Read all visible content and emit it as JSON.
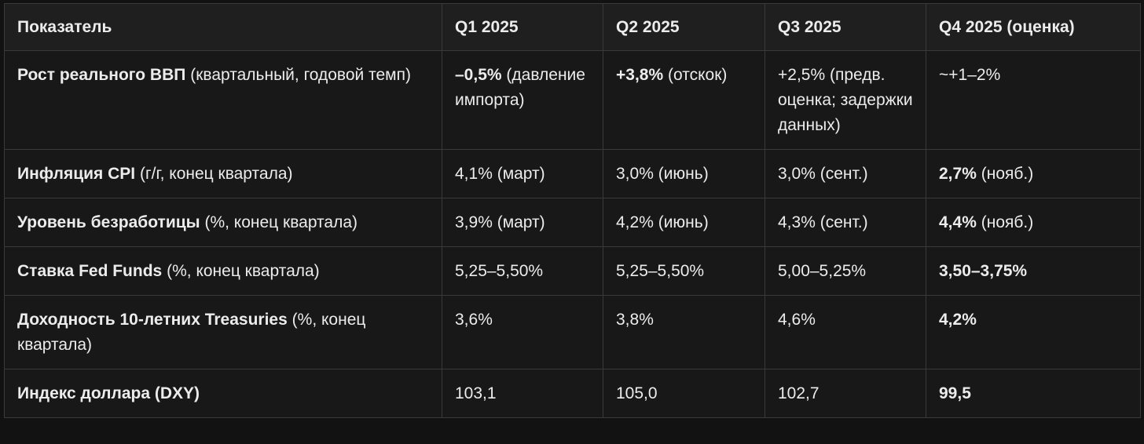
{
  "table": {
    "headers": [
      "Показатель",
      "Q1 2025",
      "Q2 2025",
      "Q3 2025",
      "Q4 2025 (оценка)"
    ],
    "rows": [
      [
        {
          "bold": "Рост реального ВВП",
          "text": "(квартальный, годовой темп)"
        },
        {
          "bold": "–0,5%",
          "text": "(давление импорта)"
        },
        {
          "bold": "+3,8%",
          "text": "(отскок)"
        },
        {
          "text": "+2,5% (предв. оценка; задержки данных)"
        },
        {
          "text": "~+1–2%"
        }
      ],
      [
        {
          "bold": "Инфляция CPI",
          "text": "(г/г, конец квартала)"
        },
        {
          "text": "4,1% (март)"
        },
        {
          "text": "3,0% (июнь)"
        },
        {
          "text": "3,0% (сент.)"
        },
        {
          "bold": "2,7%",
          "text": "(нояб.)"
        }
      ],
      [
        {
          "bold": "Уровень безработицы",
          "text": "(%, конец квартала)"
        },
        {
          "text": "3,9% (март)"
        },
        {
          "text": "4,2% (июнь)"
        },
        {
          "text": "4,3% (сент.)"
        },
        {
          "bold": "4,4%",
          "text": "(нояб.)"
        }
      ],
      [
        {
          "bold": "Ставка Fed Funds",
          "text": "(%, конец квартала)"
        },
        {
          "text": "5,25–5,50%"
        },
        {
          "text": "5,25–5,50%"
        },
        {
          "text": "5,00–5,25%"
        },
        {
          "bold": "3,50–3,75%"
        }
      ],
      [
        {
          "bold": "Доходность 10-летних Treasuries",
          "text": "(%, конец квартала)"
        },
        {
          "text": "3,6%"
        },
        {
          "text": "3,8%"
        },
        {
          "text": "4,6%"
        },
        {
          "bold": "4,2%"
        }
      ],
      [
        {
          "bold": "Индекс доллара (DXY)"
        },
        {
          "text": "103,1"
        },
        {
          "text": "105,0"
        },
        {
          "text": "102,7"
        },
        {
          "bold": "99,5"
        }
      ]
    ]
  }
}
